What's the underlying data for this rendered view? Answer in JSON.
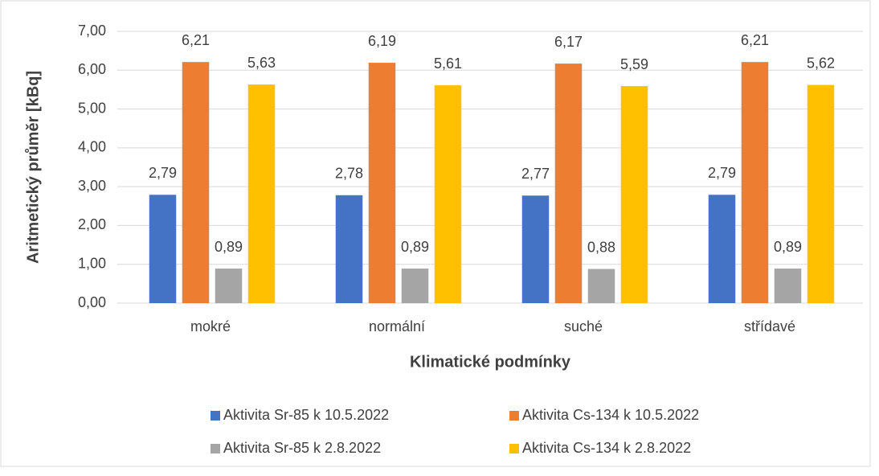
{
  "chart_data": {
    "type": "bar",
    "x_label": "Klimatické podmínky",
    "y_label": "Aritmetický průměr [kBq]",
    "categories": [
      "mokré",
      "normální",
      "suché",
      "střídavé"
    ],
    "series": [
      {
        "name": "Aktivita Sr-85 k 10.5.2022",
        "color": "#4472c4",
        "values": [
          2.79,
          2.78,
          2.77,
          2.79
        ],
        "value_labels": [
          "2,79",
          "2,78",
          "2,77",
          "2,79"
        ]
      },
      {
        "name": "Aktivita Cs-134 k 10.5.2022",
        "color": "#ed7d31",
        "values": [
          6.21,
          6.19,
          6.17,
          6.21
        ],
        "value_labels": [
          "6,21",
          "6,19",
          "6,17",
          "6,21"
        ]
      },
      {
        "name": "Aktivita Sr-85 k 2.8.2022",
        "color": "#a5a5a5",
        "values": [
          0.89,
          0.89,
          0.88,
          0.89
        ],
        "value_labels": [
          "0,89",
          "0,89",
          "0,88",
          "0,89"
        ]
      },
      {
        "name": "Aktivita Cs-134 k 2.8.2022",
        "color": "#ffc000",
        "values": [
          5.63,
          5.61,
          5.59,
          5.62
        ],
        "value_labels": [
          "5,63",
          "5,61",
          "5,59",
          "5,62"
        ]
      }
    ],
    "ylim": [
      0,
      7
    ],
    "yticks": [
      {
        "value": 0,
        "label": "0,00"
      },
      {
        "value": 1,
        "label": "1,00"
      },
      {
        "value": 2,
        "label": "2,00"
      },
      {
        "value": 3,
        "label": "3,00"
      },
      {
        "value": 4,
        "label": "4,00"
      },
      {
        "value": 5,
        "label": "5,00"
      },
      {
        "value": 6,
        "label": "6,00"
      },
      {
        "value": 7,
        "label": "7,00"
      }
    ],
    "grid": true,
    "legend": "bottom"
  }
}
